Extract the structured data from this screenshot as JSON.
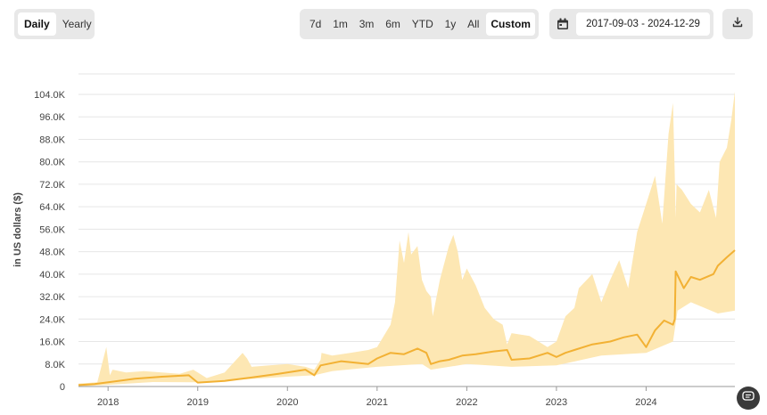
{
  "controls": {
    "period_tabs": [
      {
        "label": "Daily",
        "active": true
      },
      {
        "label": "Yearly",
        "active": false
      }
    ],
    "range_tabs": [
      {
        "label": "7d",
        "active": false
      },
      {
        "label": "1m",
        "active": false
      },
      {
        "label": "3m",
        "active": false
      },
      {
        "label": "6m",
        "active": false
      },
      {
        "label": "YTD",
        "active": false
      },
      {
        "label": "1y",
        "active": false
      },
      {
        "label": "All",
        "active": false
      },
      {
        "label": "Custom",
        "active": true
      }
    ],
    "date_range": "2017-09-03 - 2024-12-29",
    "calendar_icon": "calendar-icon",
    "download_icon": "download-icon",
    "fab_icon": "chat-icon"
  },
  "colors": {
    "line": "#f2b134",
    "band": "#fde7b3",
    "grid": "#e6e6e6",
    "button_bg": "#e8e8e8"
  },
  "chart_data": {
    "type": "area",
    "ylabel": "in US dollars ($)",
    "ylim": [
      0,
      104000
    ],
    "yticks": [
      0,
      8000,
      16000,
      24000,
      32000,
      40000,
      48000,
      56000,
      64000,
      72000,
      80000,
      88000,
      96000,
      104000
    ],
    "ytick_labels": [
      "0",
      "8.0K",
      "16.0K",
      "24.0K",
      "32.0K",
      "40.0K",
      "48.0K",
      "56.0K",
      "64.0K",
      "72.0K",
      "80.0K",
      "88.0K",
      "96.0K",
      "104.0K"
    ],
    "xlim": [
      2017.67,
      2024.99
    ],
    "xticks": [
      "2018",
      "2019",
      "2020",
      "2021",
      "2022",
      "2023",
      "2024"
    ],
    "grid": true,
    "series": [
      {
        "role": "line",
        "x": [
          2017.67,
          2017.85,
          2018.0,
          2018.3,
          2018.6,
          2018.9,
          2019.0,
          2019.3,
          2019.6,
          2019.9,
          2020.2,
          2020.3,
          2020.35,
          2020.37,
          2020.6,
          2020.9,
          2021.0,
          2021.15,
          2021.3,
          2021.45,
          2021.55,
          2021.6,
          2021.7,
          2021.8,
          2021.95,
          2022.1,
          2022.3,
          2022.45,
          2022.5,
          2022.7,
          2022.9,
          2023.0,
          2023.1,
          2023.2,
          2023.4,
          2023.6,
          2023.75,
          2023.9,
          2024.0,
          2024.1,
          2024.2,
          2024.3,
          2024.32,
          2024.33,
          2024.42,
          2024.5,
          2024.6,
          2024.75,
          2024.8,
          2024.9,
          2024.99
        ],
        "values": [
          500,
          900,
          1500,
          2800,
          3500,
          4000,
          1400,
          2000,
          3200,
          4500,
          6000,
          4000,
          6500,
          7500,
          9000,
          8000,
          10000,
          12000,
          11500,
          13500,
          12000,
          8000,
          9000,
          9500,
          11000,
          11500,
          12500,
          13000,
          9500,
          10000,
          12000,
          10500,
          12000,
          13000,
          15000,
          16000,
          17500,
          18500,
          14000,
          20000,
          23500,
          22000,
          24000,
          41000,
          35000,
          39000,
          38000,
          40000,
          43000,
          46000,
          48500
        ]
      },
      {
        "role": "band_upper",
        "x": [
          2017.67,
          2017.88,
          2017.98,
          2018.02,
          2018.05,
          2018.2,
          2018.4,
          2018.6,
          2018.8,
          2018.95,
          2019.1,
          2019.3,
          2019.5,
          2019.55,
          2019.6,
          2019.8,
          2020.0,
          2020.2,
          2020.3,
          2020.37,
          2020.38,
          2020.5,
          2020.7,
          2020.9,
          2021.0,
          2021.15,
          2021.2,
          2021.25,
          2021.3,
          2021.35,
          2021.38,
          2021.45,
          2021.5,
          2021.55,
          2021.6,
          2021.62,
          2021.7,
          2021.8,
          2021.85,
          2021.9,
          2021.95,
          2022.0,
          2022.1,
          2022.2,
          2022.3,
          2022.4,
          2022.45,
          2022.5,
          2022.7,
          2022.9,
          2023.0,
          2023.1,
          2023.2,
          2023.25,
          2023.4,
          2023.5,
          2023.6,
          2023.7,
          2023.8,
          2023.9,
          2024.0,
          2024.1,
          2024.18,
          2024.25,
          2024.3,
          2024.32,
          2024.33,
          2024.34,
          2024.4,
          2024.5,
          2024.6,
          2024.7,
          2024.78,
          2024.82,
          2024.9,
          2024.95,
          2024.99
        ],
        "values": [
          1000,
          1500,
          14000,
          4000,
          6000,
          5000,
          5500,
          5000,
          4500,
          6000,
          3000,
          5000,
          12000,
          10000,
          7000,
          7500,
          8000,
          7000,
          6000,
          9500,
          12000,
          11000,
          12000,
          13000,
          14000,
          22000,
          30000,
          52000,
          44000,
          55000,
          47000,
          50000,
          38000,
          34000,
          32000,
          25000,
          38000,
          50000,
          54000,
          48000,
          38000,
          42000,
          36000,
          28000,
          24000,
          22000,
          15000,
          19000,
          18000,
          14000,
          16000,
          25000,
          28000,
          35000,
          40000,
          30000,
          38000,
          45000,
          35000,
          55000,
          65000,
          75000,
          58000,
          90000,
          101000,
          75000,
          60000,
          72000,
          70000,
          65000,
          62000,
          70000,
          60000,
          80000,
          85000,
          95000,
          105000
        ]
      },
      {
        "role": "band_lower",
        "x": [
          2017.67,
          2018.0,
          2018.5,
          2019.0,
          2019.5,
          2020.0,
          2020.3,
          2020.5,
          2021.0,
          2021.5,
          2021.6,
          2022.0,
          2022.5,
          2023.0,
          2023.5,
          2024.0,
          2024.3,
          2024.35,
          2024.5,
          2024.8,
          2024.99
        ],
        "values": [
          0,
          600,
          1600,
          1500,
          2500,
          3500,
          4000,
          5500,
          7000,
          8000,
          6000,
          8000,
          7000,
          7500,
          11000,
          12000,
          16000,
          27000,
          30000,
          26000,
          27000
        ]
      }
    ]
  }
}
